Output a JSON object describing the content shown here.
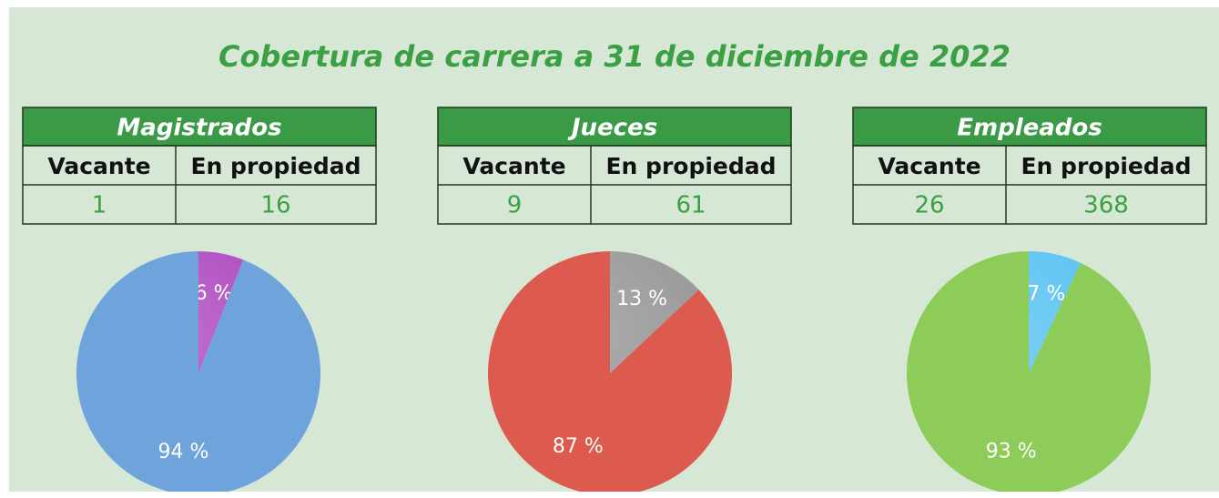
{
  "title": "Cobertura de carrera a 31 de diciembre de 2022",
  "tables": [
    {
      "title": "Magistrados",
      "headers": [
        "Vacante",
        "En propiedad"
      ],
      "values": [
        1,
        16
      ]
    },
    {
      "title": "Jueces",
      "headers": [
        "Vacante",
        "En propiedad"
      ],
      "values": [
        9,
        61
      ]
    },
    {
      "title": "Empleados",
      "headers": [
        "Vacante",
        "En propiedad"
      ],
      "values": [
        26,
        368
      ]
    }
  ],
  "chart_data": [
    {
      "type": "pie",
      "values": [
        6,
        94
      ],
      "value_labels": [
        "6 %",
        "94 %"
      ],
      "colors": [
        "#b04ec2",
        "#6fa3dc"
      ]
    },
    {
      "type": "pie",
      "values": [
        13,
        87
      ],
      "value_labels": [
        "13 %",
        "87 %"
      ],
      "colors": [
        "#9a9a9a",
        "#dc5a4e"
      ]
    },
    {
      "type": "pie",
      "values": [
        7,
        93
      ],
      "value_labels": [
        "7 %",
        "93 %"
      ],
      "colors": [
        "#5cc4f2",
        "#8dcc58"
      ]
    }
  ]
}
